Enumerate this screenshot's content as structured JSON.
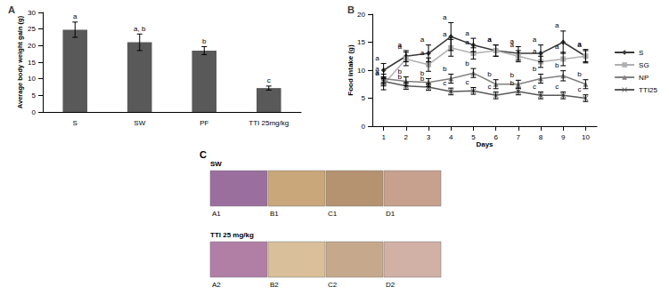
{
  "chart_data": [
    {
      "type": "bar",
      "title": "A",
      "categories": [
        "S",
        "SW",
        "PF",
        "TTI 25mg/kg"
      ],
      "values": [
        24.8,
        21.0,
        18.5,
        7.2
      ],
      "errors": [
        2.3,
        2.5,
        1.2,
        0.6
      ],
      "letters": [
        "a",
        "a, b",
        "b",
        "c"
      ],
      "color": "#595959",
      "ylabel": "Average body weight gain (g)",
      "ylim": [
        0,
        30
      ],
      "yticks": [
        0,
        5,
        10,
        15,
        20,
        25,
        30
      ],
      "grid": false
    },
    {
      "type": "line",
      "title": "B",
      "categories": [
        "1",
        "2",
        "3",
        "4",
        "5",
        "6",
        "7",
        "8",
        "9",
        "10"
      ],
      "xlabel": "Days",
      "ylabel": "Food intake (g)",
      "ylim": [
        0,
        20
      ],
      "yticks": [
        0,
        5,
        10,
        15,
        20
      ],
      "grid": false,
      "legend": "right",
      "series": [
        {
          "name": "S",
          "color": "#3a3a3a",
          "marker": "diamond",
          "values": [
            10.0,
            12.5,
            13.0,
            16.0,
            14.5,
            13.5,
            13.0,
            13.0,
            15.0,
            12.5
          ],
          "errors": [
            1.2,
            1.0,
            1.5,
            2.5,
            1.2,
            1.0,
            1.2,
            1.5,
            2.0,
            1.2
          ],
          "letters": [
            "a",
            "a",
            "a",
            "a",
            "a",
            "a",
            "a",
            "a",
            "a",
            "a"
          ]
        },
        {
          "name": "SG",
          "color": "#b0b0b0",
          "marker": "square",
          "values": [
            7.5,
            12.0,
            11.0,
            14.0,
            13.0,
            13.5,
            12.5,
            11.5,
            12.0,
            12.5
          ],
          "errors": [
            1.0,
            1.2,
            1.2,
            1.5,
            1.0,
            1.0,
            1.0,
            1.0,
            1.2,
            1.0
          ],
          "letters": [
            "a",
            "a",
            "a",
            "a",
            "a",
            "a",
            "a",
            "a",
            "a",
            "a"
          ]
        },
        {
          "name": "NP",
          "color": "#808080",
          "marker": "triangle",
          "values": [
            8.5,
            8.0,
            7.8,
            8.5,
            9.5,
            7.5,
            7.5,
            8.5,
            9.0,
            7.5
          ],
          "errors": [
            0.8,
            0.8,
            0.7,
            0.8,
            0.8,
            0.8,
            0.7,
            0.8,
            0.9,
            0.8
          ],
          "letters": [
            "a",
            "b",
            "b",
            "b",
            "b",
            "b",
            "b",
            "b",
            "b",
            "b"
          ]
        },
        {
          "name": "TTI25",
          "color": "#595959",
          "marker": "x",
          "values": [
            8.0,
            7.2,
            7.0,
            6.2,
            6.3,
            5.5,
            6.2,
            5.5,
            5.5,
            5.0
          ],
          "errors": [
            0.7,
            0.6,
            0.6,
            0.6,
            0.6,
            0.6,
            0.6,
            0.6,
            0.6,
            0.6
          ],
          "letters": [
            "a",
            "b",
            "b",
            "c",
            "c",
            "c",
            "b",
            "c",
            "c",
            "c"
          ]
        }
      ]
    }
  ],
  "panel_c": {
    "label": "C",
    "groups": [
      {
        "title": "SW",
        "images": [
          "A1",
          "B1",
          "C1",
          "D1"
        ]
      },
      {
        "title": "TTI 25 mg/kg",
        "images": [
          "A2",
          "B2",
          "C2",
          "D2"
        ]
      }
    ]
  }
}
